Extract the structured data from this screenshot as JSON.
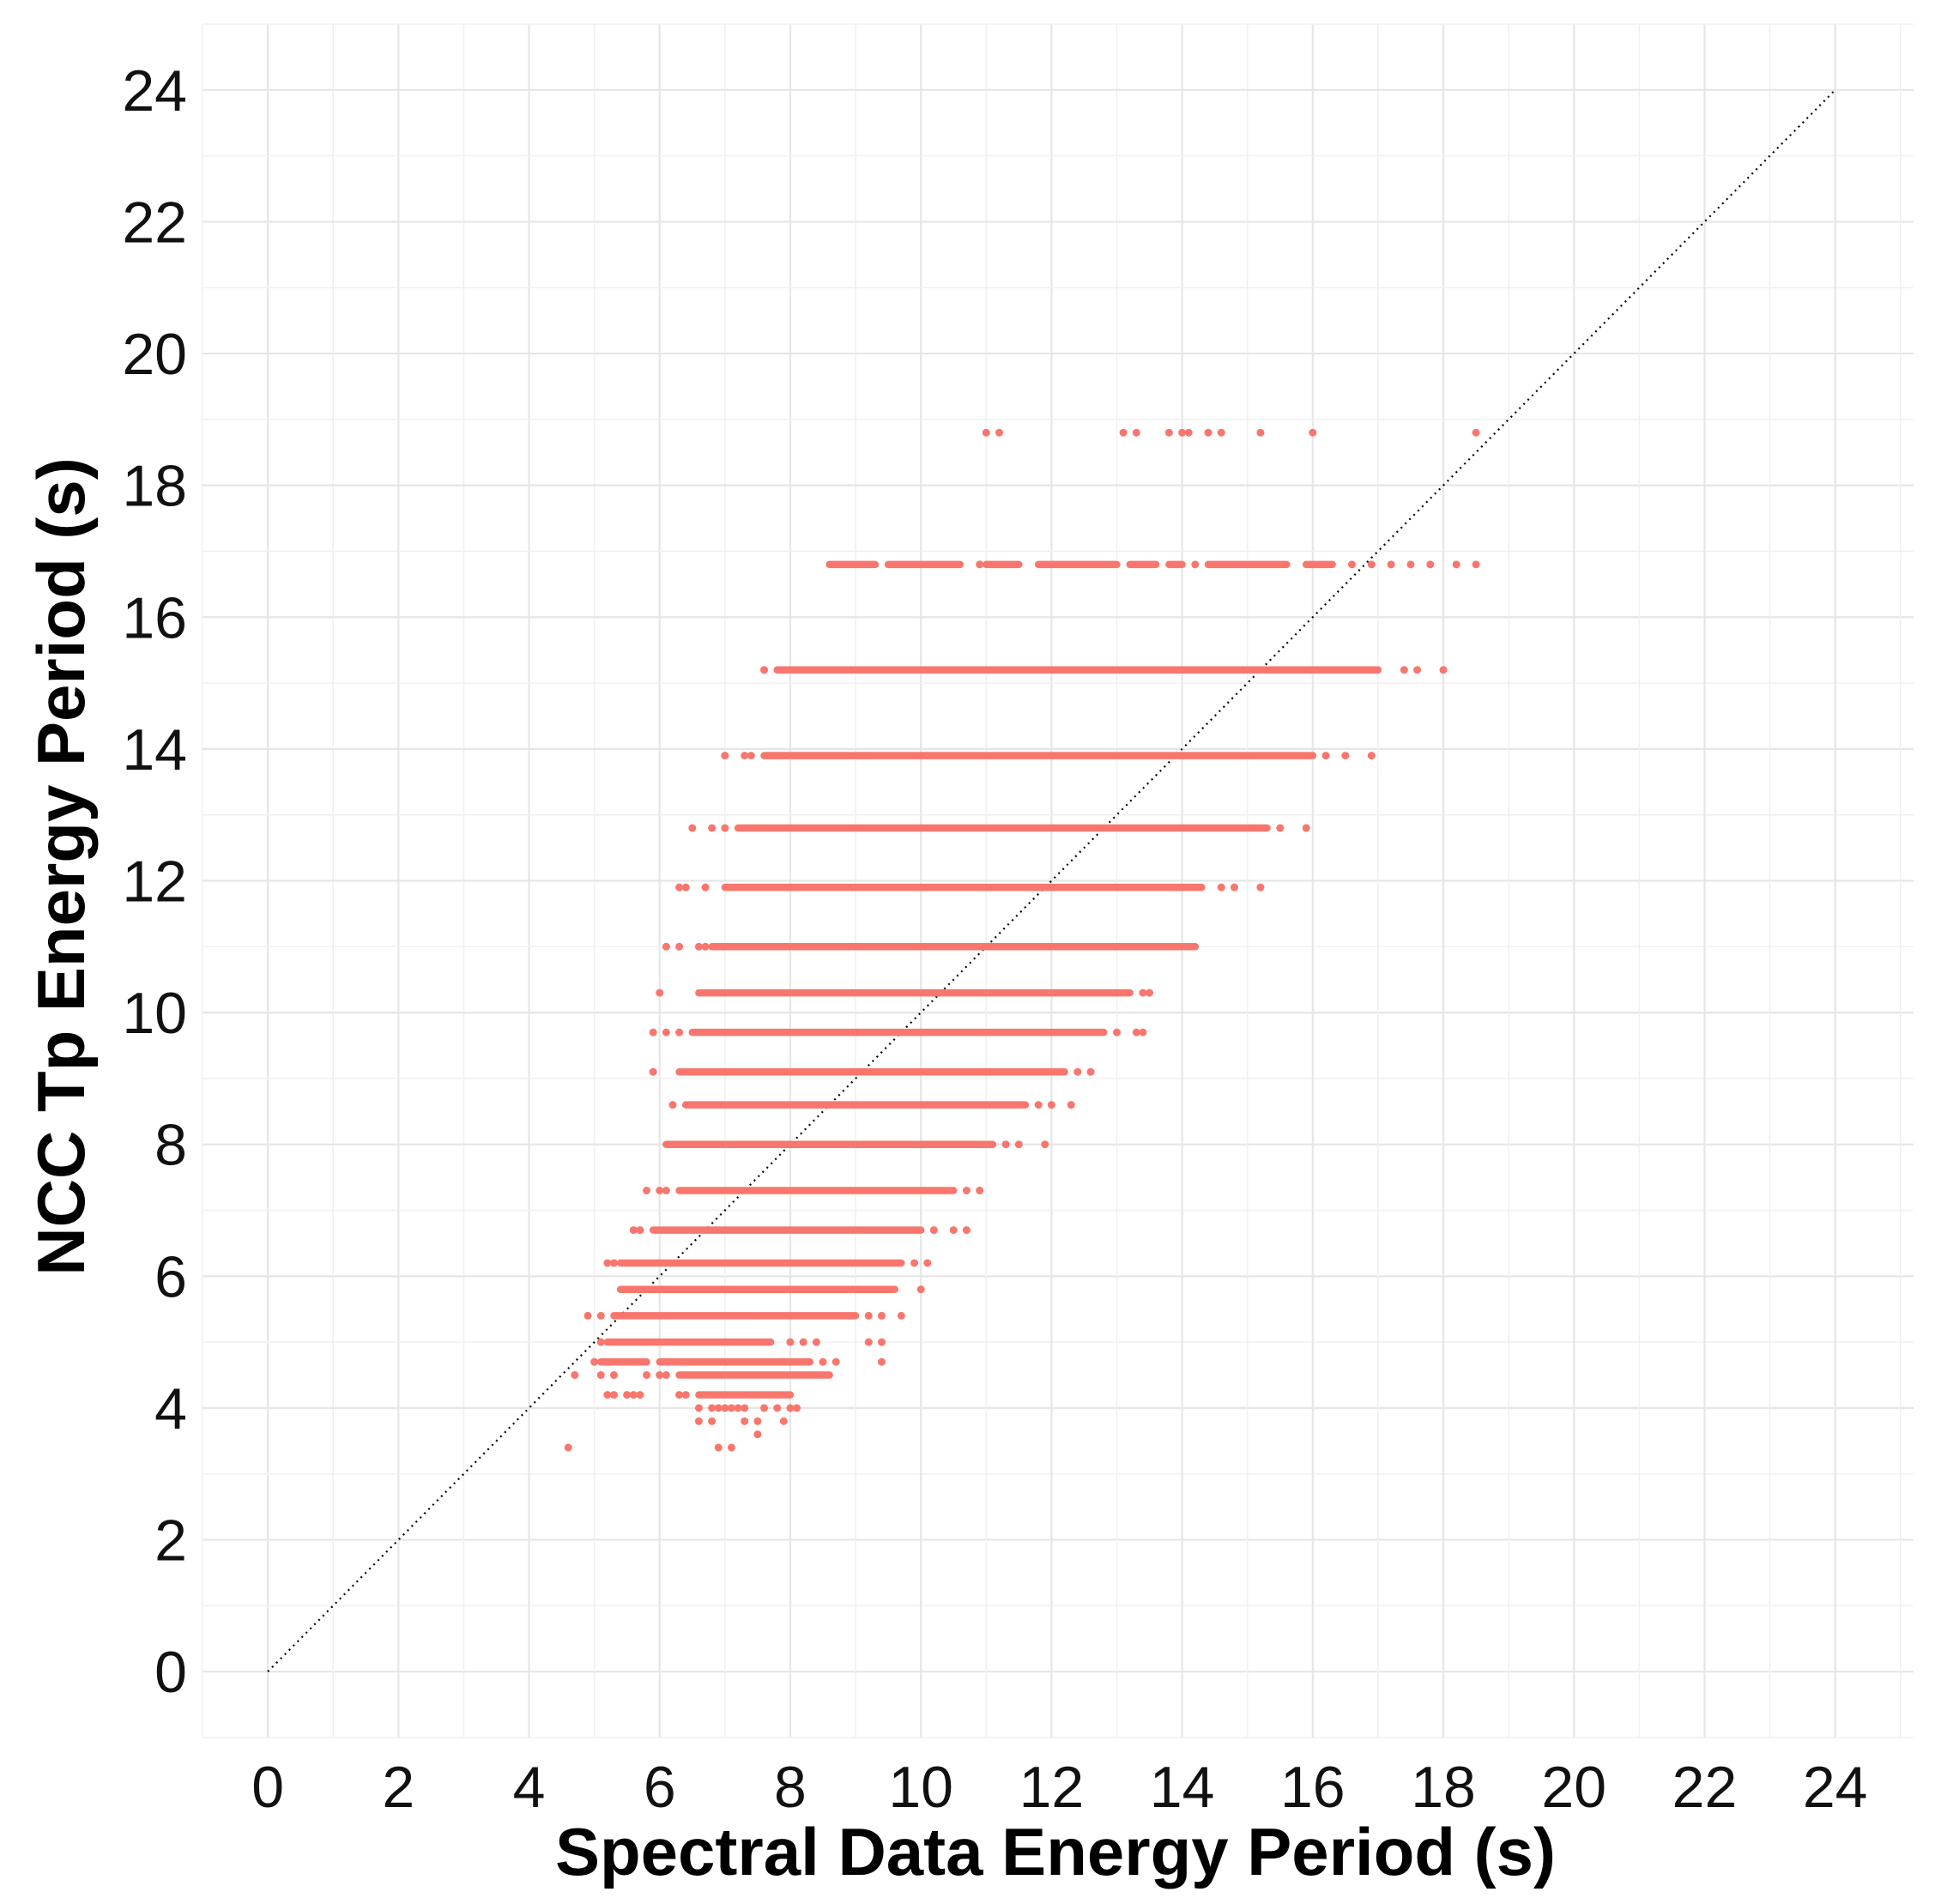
{
  "chart_data": {
    "type": "scatter",
    "title": "",
    "xlabel": "Spectral Data Energy Period (s)",
    "ylabel": "NCC Tp Energy Period (s)",
    "xlim": [
      -1,
      25.2
    ],
    "ylim": [
      -1,
      25
    ],
    "xticks": [
      0,
      2,
      4,
      6,
      8,
      10,
      12,
      14,
      16,
      18,
      20,
      22,
      24
    ],
    "yticks": [
      0,
      2,
      4,
      6,
      8,
      10,
      12,
      14,
      16,
      18,
      20,
      22,
      24
    ],
    "grid": true,
    "point_color": "#F8766D",
    "reference_line": {
      "label": "1:1 line",
      "from": [
        0,
        0
      ],
      "to": [
        24,
        24
      ],
      "style": "dotted",
      "color": "#000000"
    },
    "series": [
      {
        "name": "Tp",
        "bands": [
          {
            "y": 18.8,
            "x": [
              11.0,
              11.2,
              13.1,
              13.3,
              13.8,
              14.0,
              14.1,
              14.4,
              14.6,
              15.2,
              16.0,
              18.5
            ]
          },
          {
            "y": 16.8,
            "segments": [
              [
                8.6,
                9.3
              ],
              [
                9.5,
                10.6
              ],
              [
                11.0,
                11.5
              ],
              [
                11.8,
                13.0
              ],
              [
                13.2,
                13.6
              ],
              [
                13.8,
                14.0
              ],
              [
                14.4,
                15.6
              ],
              [
                15.9,
                16.3
              ]
            ],
            "x": [
              10.9,
              14.2,
              16.6,
              16.9,
              17.2,
              17.5,
              17.8,
              18.2,
              18.5
            ]
          },
          {
            "y": 15.2,
            "segments": [
              [
                7.8,
                17.0
              ]
            ],
            "x": [
              7.6,
              17.4,
              17.6,
              18.0
            ]
          },
          {
            "y": 13.9,
            "segments": [
              [
                7.6,
                16.0
              ]
            ],
            "x": [
              7.0,
              7.3,
              7.4,
              16.2,
              16.5,
              16.9
            ]
          },
          {
            "y": 12.8,
            "segments": [
              [
                7.2,
                15.3
              ]
            ],
            "x": [
              6.5,
              6.8,
              7.0,
              15.5,
              15.9
            ]
          },
          {
            "y": 11.9,
            "segments": [
              [
                7.0,
                14.3
              ]
            ],
            "x": [
              6.3,
              6.4,
              6.7,
              14.6,
              14.8,
              15.2
            ]
          },
          {
            "y": 11.0,
            "segments": [
              [
                6.8,
                14.2
              ]
            ],
            "x": [
              6.1,
              6.3,
              6.6,
              6.7
            ]
          },
          {
            "y": 10.3,
            "segments": [
              [
                6.6,
                13.2
              ]
            ],
            "x": [
              6.0,
              13.4,
              13.5
            ]
          },
          {
            "y": 9.7,
            "segments": [
              [
                6.5,
                12.8
              ]
            ],
            "x": [
              5.9,
              6.1,
              6.3,
              13.0,
              13.3,
              13.4
            ]
          },
          {
            "y": 9.1,
            "segments": [
              [
                6.3,
                12.2
              ]
            ],
            "x": [
              5.9,
              12.4,
              12.6
            ]
          },
          {
            "y": 8.6,
            "segments": [
              [
                6.4,
                11.6
              ]
            ],
            "x": [
              6.2,
              11.8,
              12.0,
              12.3
            ]
          },
          {
            "y": 8.0,
            "segments": [
              [
                6.1,
                11.1
              ]
            ],
            "x": [
              11.3,
              11.5,
              11.9
            ]
          },
          {
            "y": 7.3,
            "segments": [
              [
                6.3,
                10.5
              ]
            ],
            "x": [
              5.8,
              6.0,
              6.1,
              10.7,
              10.9
            ]
          },
          {
            "y": 6.7,
            "segments": [
              [
                5.9,
                10.0
              ]
            ],
            "x": [
              5.6,
              5.7,
              10.2,
              10.5,
              10.7
            ]
          },
          {
            "y": 6.2,
            "segments": [
              [
                5.4,
                9.7
              ]
            ],
            "x": [
              5.2,
              5.3,
              9.9,
              10.1
            ]
          },
          {
            "y": 5.8,
            "segments": [
              [
                5.4,
                9.6
              ]
            ],
            "x": [
              10.0
            ]
          },
          {
            "y": 5.4,
            "segments": [
              [
                5.3,
                9.0
              ]
            ],
            "x": [
              4.9,
              5.1,
              9.2,
              9.4,
              9.7
            ]
          },
          {
            "y": 5.0,
            "segments": [
              [
                5.2,
                7.7
              ]
            ],
            "x": [
              5.1,
              8.0,
              8.2,
              8.4,
              9.2,
              9.4
            ]
          },
          {
            "y": 4.7,
            "segments": [
              [
                5.1,
                5.8
              ],
              [
                6.0,
                8.3
              ]
            ],
            "x": [
              5.0,
              8.5,
              8.7,
              9.4
            ]
          },
          {
            "y": 4.5,
            "segments": [
              [
                6.3,
                8.6
              ]
            ],
            "x": [
              4.7,
              5.1,
              5.3,
              5.8,
              6.0,
              6.1
            ]
          },
          {
            "y": 4.2,
            "segments": [
              [
                6.6,
                8.0
              ]
            ],
            "x": [
              5.2,
              5.3,
              5.5,
              5.6,
              5.7,
              6.3,
              6.4
            ]
          },
          {
            "y": 4.0,
            "x": [
              6.6,
              6.8,
              6.9,
              7.0,
              7.1,
              7.2,
              7.3,
              7.6,
              7.8,
              8.0,
              8.1
            ]
          },
          {
            "y": 3.8,
            "x": [
              6.6,
              6.8,
              7.3,
              7.5,
              7.9
            ]
          },
          {
            "y": 3.6,
            "x": [
              7.5
            ]
          },
          {
            "y": 3.4,
            "x": [
              4.6,
              6.9,
              7.1
            ]
          }
        ]
      }
    ]
  }
}
